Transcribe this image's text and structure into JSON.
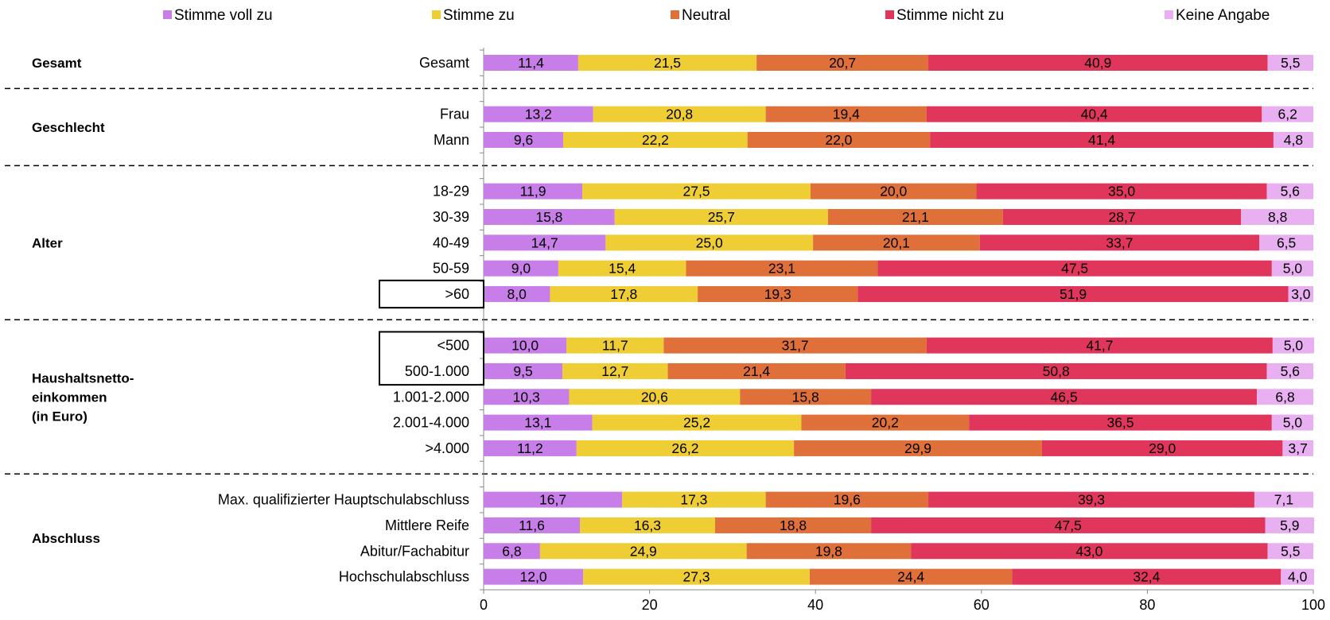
{
  "chart_data": {
    "type": "bar",
    "orientation": "horizontal",
    "stacked": true,
    "legend_position": "top",
    "grid": false,
    "xlim": [
      0,
      100
    ],
    "x_ticks": [
      "0",
      "20",
      "40",
      "60",
      "80",
      "100"
    ],
    "series": [
      {
        "name": "Stimme voll zu",
        "color": "#c87ee8"
      },
      {
        "name": "Stimme zu",
        "color": "#eecd35"
      },
      {
        "name": "Neutral",
        "color": "#e0703a"
      },
      {
        "name": "Stimme nicht zu",
        "color": "#e1365b"
      },
      {
        "name": "Keine Angabe",
        "color": "#e8b0f0"
      }
    ],
    "groups": [
      {
        "label_lines": [
          "Gesamt"
        ],
        "rows": [
          {
            "category": "Gesamt",
            "values": [
              11.4,
              21.5,
              20.7,
              40.9,
              5.5
            ],
            "labels": [
              "11,4",
              "21,5",
              "20,7",
              "40,9",
              "5,5"
            ]
          }
        ]
      },
      {
        "label_lines": [
          "Geschlecht"
        ],
        "rows": [
          {
            "category": "Frau",
            "values": [
              13.2,
              20.8,
              19.4,
              40.4,
              6.2
            ],
            "labels": [
              "13,2",
              "20,8",
              "19,4",
              "40,4",
              "6,2"
            ]
          },
          {
            "category": "Mann",
            "values": [
              9.6,
              22.2,
              22.0,
              41.4,
              4.8
            ],
            "labels": [
              "9,6",
              "22,2",
              "22,0",
              "41,4",
              "4,8"
            ]
          }
        ]
      },
      {
        "label_lines": [
          "Alter"
        ],
        "rows": [
          {
            "category": "18-29",
            "values": [
              11.9,
              27.5,
              20.0,
              35.0,
              5.6
            ],
            "labels": [
              "11,9",
              "27,5",
              "20,0",
              "35,0",
              "5,6"
            ]
          },
          {
            "category": "30-39",
            "values": [
              15.8,
              25.7,
              21.1,
              28.7,
              8.8
            ],
            "labels": [
              "15,8",
              "25,7",
              "21,1",
              "28,7",
              "8,8"
            ]
          },
          {
            "category": "40-49",
            "values": [
              14.7,
              25.0,
              20.1,
              33.7,
              6.5
            ],
            "labels": [
              "14,7",
              "25,0",
              "20,1",
              "33,7",
              "6,5"
            ]
          },
          {
            "category": "50-59",
            "values": [
              9.0,
              15.4,
              23.1,
              47.5,
              5.0
            ],
            "labels": [
              "9,0",
              "15,4",
              "23,1",
              "47,5",
              "5,0"
            ]
          },
          {
            "category": ">60",
            "values": [
              8.0,
              17.8,
              19.3,
              51.9,
              3.0
            ],
            "labels": [
              "8,0",
              "17,8",
              "19,3",
              "51,9",
              "3,0"
            ],
            "highlighted": true
          }
        ]
      },
      {
        "label_lines": [
          "Haushaltsnetto-",
          "einkommen",
          "(in Euro)"
        ],
        "rows": [
          {
            "category": "<500",
            "values": [
              10.0,
              11.7,
              31.7,
              41.7,
              5.0
            ],
            "labels": [
              "10,0",
              "11,7",
              "31,7",
              "41,7",
              "5,0"
            ],
            "highlighted": true
          },
          {
            "category": "500-1.000",
            "values": [
              9.5,
              12.7,
              21.4,
              50.8,
              5.6
            ],
            "labels": [
              "9,5",
              "12,7",
              "21,4",
              "50,8",
              "5,6"
            ],
            "highlighted": true
          },
          {
            "category": "1.001-2.000",
            "values": [
              10.3,
              20.6,
              15.8,
              46.5,
              6.8
            ],
            "labels": [
              "10,3",
              "20,6",
              "15,8",
              "46,5",
              "6,8"
            ]
          },
          {
            "category": "2.001-4.000",
            "values": [
              13.1,
              25.2,
              20.2,
              36.5,
              5.0
            ],
            "labels": [
              "13,1",
              "25,2",
              "20,2",
              "36,5",
              "5,0"
            ]
          },
          {
            "category": ">4.000",
            "values": [
              11.2,
              26.2,
              29.9,
              29.0,
              3.7
            ],
            "labels": [
              "11,2",
              "26,2",
              "29,9",
              "29,0",
              "3,7"
            ]
          }
        ]
      },
      {
        "label_lines": [
          "Abschluss"
        ],
        "rows": [
          {
            "category": "Max. qualifizierter Hauptschulabschluss",
            "values": [
              16.7,
              17.3,
              19.6,
              39.3,
              7.1
            ],
            "labels": [
              "16,7",
              "17,3",
              "19,6",
              "39,3",
              "7,1"
            ]
          },
          {
            "category": "Mittlere Reife",
            "values": [
              11.6,
              16.3,
              18.8,
              47.5,
              5.9
            ],
            "labels": [
              "11,6",
              "16,3",
              "18,8",
              "47,5",
              "5,9"
            ]
          },
          {
            "category": "Abitur/Fachabitur",
            "values": [
              6.8,
              24.9,
              19.8,
              43.0,
              5.5
            ],
            "labels": [
              "6,8",
              "24,9",
              "19,8",
              "43,0",
              "5,5"
            ]
          },
          {
            "category": "Hochschulabschluss",
            "values": [
              12.0,
              27.3,
              24.4,
              32.4,
              4.0
            ],
            "labels": [
              "12,0",
              "27,3",
              "24,4",
              "32,4",
              "4,0"
            ]
          }
        ]
      }
    ]
  }
}
